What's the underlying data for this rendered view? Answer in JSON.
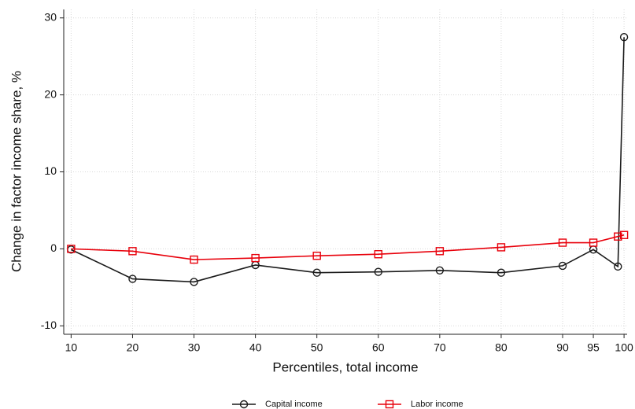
{
  "chart_data": {
    "type": "line",
    "x_label": "Percentiles, total income",
    "y_label": "Change in factor income share, %",
    "x": [
      10,
      20,
      30,
      40,
      50,
      60,
      70,
      80,
      90,
      95,
      99,
      100
    ],
    "series": [
      {
        "name": "Capital income",
        "color": "#1a1a1a",
        "marker": "circle",
        "values": [
          -0.1,
          -3.9,
          -4.3,
          -2.1,
          -3.1,
          -3.0,
          -2.8,
          -3.1,
          -2.2,
          -0.1,
          -2.3,
          27.5
        ]
      },
      {
        "name": "Labor income",
        "color": "#e8000b",
        "marker": "square",
        "values": [
          0,
          -0.3,
          -1.4,
          -1.2,
          -0.9,
          -0.7,
          -0.3,
          0.2,
          0.8,
          0.8,
          1.6,
          1.8
        ]
      }
    ],
    "xlim": [
      8.8,
      100.5
    ],
    "xticks": [
      10,
      20,
      30,
      40,
      50,
      60,
      70,
      80,
      90,
      95,
      100
    ],
    "ylim": [
      -11.1,
      31.1
    ],
    "yticks": [
      -10,
      0,
      10,
      20,
      30
    ],
    "grid": true,
    "legend": "bottom"
  }
}
